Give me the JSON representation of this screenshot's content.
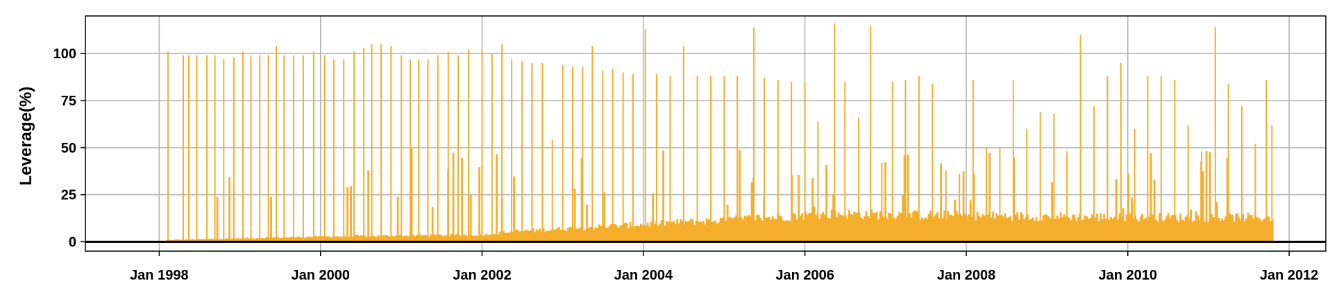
{
  "chart_data": {
    "type": "bar",
    "title": "",
    "xlabel": "",
    "ylabel": "Leverage(%)",
    "xlim": [
      "1997-02-01",
      "2012-06-15"
    ],
    "ylim": [
      -5,
      120
    ],
    "x_ticks": [
      "1998-01-01",
      "2000-01-01",
      "2002-01-01",
      "2004-01-01",
      "2006-01-01",
      "2008-01-01",
      "2010-01-01",
      "2012-01-01"
    ],
    "x_tick_labels": [
      "Jan 1998",
      "Jan 2000",
      "Jan 2002",
      "Jan 2004",
      "Jan 2006",
      "Jan 2008",
      "Jan 2010",
      "Jan 2012"
    ],
    "y_ticks": [
      0,
      25,
      50,
      75,
      100
    ],
    "y_tick_labels": [
      "0",
      "25",
      "50",
      "75",
      "100"
    ],
    "grid": true,
    "zero_line": true,
    "series": [
      {
        "color": "#f5ae2b",
        "data_start": "1998-02-01",
        "data_end": "2011-10-20",
        "baseline": [
          [
            "1998-02-01",
            1
          ],
          [
            "2000-01-01",
            3
          ],
          [
            "2002-01-01",
            4
          ],
          [
            "2002-06-01",
            6
          ],
          [
            "2004-01-01",
            10
          ],
          [
            "2005-12-01",
            15
          ],
          [
            "2006-06-01",
            16
          ],
          [
            "2008-01-01",
            15
          ],
          [
            "2010-01-01",
            14
          ],
          [
            "2011-10-20",
            14
          ]
        ],
        "spikes": [
          [
            "1998-02-10",
            101
          ],
          [
            "1998-04-20",
            99
          ],
          [
            "1998-05-15",
            99
          ],
          [
            "1998-06-20",
            99
          ],
          [
            "1998-08-05",
            99
          ],
          [
            "1998-09-10",
            99
          ],
          [
            "1998-10-20",
            97
          ],
          [
            "1998-12-05",
            98
          ],
          [
            "1999-01-15",
            101
          ],
          [
            "1999-02-20",
            99
          ],
          [
            "1999-04-01",
            99
          ],
          [
            "1999-05-10",
            99
          ],
          [
            "1999-06-15",
            104
          ],
          [
            "1999-07-20",
            99
          ],
          [
            "1999-09-01",
            99
          ],
          [
            "1999-10-15",
            99
          ],
          [
            "1999-12-01",
            101
          ],
          [
            "2000-01-20",
            99
          ],
          [
            "2000-03-01",
            97
          ],
          [
            "2000-04-15",
            97
          ],
          [
            "2000-06-01",
            101
          ],
          [
            "2000-07-15",
            103
          ],
          [
            "2000-08-20",
            105
          ],
          [
            "2000-10-01",
            105
          ],
          [
            "2000-11-15",
            104
          ],
          [
            "2001-01-01",
            99
          ],
          [
            "2001-02-10",
            97
          ],
          [
            "2001-03-20",
            97
          ],
          [
            "2001-05-01",
            97
          ],
          [
            "2001-06-15",
            99
          ],
          [
            "2001-08-01",
            101
          ],
          [
            "2001-09-15",
            99
          ],
          [
            "2001-11-01",
            102
          ],
          [
            "2002-01-01",
            102
          ],
          [
            "2002-02-15",
            100
          ],
          [
            "2002-04-01",
            105
          ],
          [
            "2002-05-15",
            97
          ],
          [
            "2002-07-01",
            96
          ],
          [
            "2002-08-15",
            95
          ],
          [
            "2002-10-01",
            95
          ],
          [
            "2002-11-15",
            54
          ],
          [
            "2003-01-01",
            94
          ],
          [
            "2003-02-15",
            93
          ],
          [
            "2003-04-01",
            93
          ],
          [
            "2003-05-15",
            104
          ],
          [
            "2003-07-01",
            91
          ],
          [
            "2003-08-15",
            92
          ],
          [
            "2003-10-01",
            90
          ],
          [
            "2003-11-15",
            89
          ],
          [
            "2004-01-10",
            113
          ],
          [
            "2004-03-01",
            89
          ],
          [
            "2004-05-01",
            88
          ],
          [
            "2004-07-01",
            104
          ],
          [
            "2004-09-01",
            88
          ],
          [
            "2004-11-01",
            88
          ],
          [
            "2005-01-01",
            88
          ],
          [
            "2005-03-01",
            88
          ],
          [
            "2005-05-15",
            114
          ],
          [
            "2005-07-01",
            87
          ],
          [
            "2005-09-01",
            86
          ],
          [
            "2005-11-01",
            85
          ],
          [
            "2006-01-01",
            85
          ],
          [
            "2006-03-01",
            64
          ],
          [
            "2006-05-15",
            116
          ],
          [
            "2006-07-01",
            85
          ],
          [
            "2006-09-01",
            66
          ],
          [
            "2006-10-25",
            115
          ],
          [
            "2006-12-15",
            42
          ],
          [
            "2007-02-01",
            85
          ],
          [
            "2007-04-01",
            86
          ],
          [
            "2007-06-01",
            88
          ],
          [
            "2007-08-01",
            84
          ],
          [
            "2007-10-01",
            38
          ],
          [
            "2007-12-01",
            36
          ],
          [
            "2008-02-01",
            86
          ],
          [
            "2008-04-01",
            50
          ],
          [
            "2008-06-01",
            50
          ],
          [
            "2008-08-01",
            86
          ],
          [
            "2008-10-01",
            60
          ],
          [
            "2008-12-01",
            69
          ],
          [
            "2009-02-01",
            68
          ],
          [
            "2009-04-01",
            48
          ],
          [
            "2009-06-01",
            110
          ],
          [
            "2009-08-01",
            72
          ],
          [
            "2009-10-01",
            88
          ],
          [
            "2009-12-01",
            95
          ],
          [
            "2010-02-01",
            60
          ],
          [
            "2010-04-01",
            88
          ],
          [
            "2010-06-01",
            88
          ],
          [
            "2010-08-01",
            86
          ],
          [
            "2010-10-01",
            62
          ],
          [
            "2010-12-01",
            48
          ],
          [
            "2011-02-01",
            114
          ],
          [
            "2011-04-01",
            84
          ],
          [
            "2011-06-01",
            72
          ],
          [
            "2011-08-01",
            52
          ],
          [
            "2011-09-20",
            86
          ],
          [
            "2011-10-15",
            62
          ]
        ]
      }
    ]
  }
}
